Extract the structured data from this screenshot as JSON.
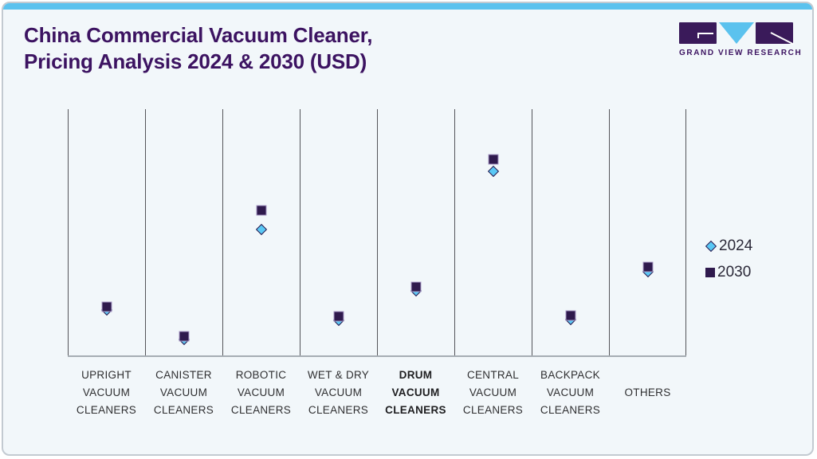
{
  "header": {
    "title_line1": "China Commercial Vacuum Cleaner,",
    "title_line2": "Pricing Analysis 2024 & 2030 (USD)"
  },
  "logo": {
    "text": "GRAND VIEW RESEARCH"
  },
  "colors": {
    "accent_bar": "#5bc2ee",
    "card_bg": "#f2f7fa",
    "card_border": "#c3cad1",
    "title_text": "#3c1361",
    "logo_purple": "#3a1a5a",
    "logo_blue": "#5bc2ee",
    "gridline": "#54555a",
    "axis_line": "#a6adb3",
    "label_text": "#2f2f31",
    "legend_text": "#2b2938",
    "series_2024_fill": "#5ac8f5",
    "series_2024_border": "#2f1a4d",
    "series_2030_fill": "#2f1a4d",
    "series_2030_border": "#a899c7"
  },
  "chart_data": {
    "type": "scatter",
    "title": "China Commercial Vacuum Cleaner, Pricing Analysis 2024 & 2030 (USD)",
    "currency": "USD",
    "grid": "vertical category separators only, no horizontal gridlines",
    "legend_position": "right-center",
    "y_axis": {
      "tick_labels_visible": false,
      "scale_note": "No numeric y-axis is shown in the figure; series values below are marker heights as a fraction of the plot height (0 = x-axis baseline, 1 = plot top)."
    },
    "categories": [
      {
        "lines": [
          "UPRIGHT",
          "VACUUM",
          "CLEANERS"
        ],
        "bold": false
      },
      {
        "lines": [
          "CANISTER",
          "VACUUM",
          "CLEANERS"
        ],
        "bold": false
      },
      {
        "lines": [
          "ROBOTIC",
          "VACUUM",
          "CLEANERS"
        ],
        "bold": false
      },
      {
        "lines": [
          "WET & DRY",
          "VACUUM",
          "CLEANERS"
        ],
        "bold": false
      },
      {
        "lines": [
          "DRUM",
          "VACUUM",
          "CLEANERS"
        ],
        "bold": true
      },
      {
        "lines": [
          "CENTRAL",
          "VACUUM",
          "CLEANERS"
        ],
        "bold": false
      },
      {
        "lines": [
          "BACKPACK",
          "VACUUM",
          "CLEANERS"
        ],
        "bold": false
      },
      {
        "lines": [
          "OTHERS"
        ],
        "bold": false
      }
    ],
    "series": [
      {
        "name": "2024",
        "marker": "diamond",
        "relative_values": [
          0.183,
          0.066,
          0.511,
          0.143,
          0.262,
          0.748,
          0.146,
          0.34
        ]
      },
      {
        "name": "2030",
        "marker": "square",
        "relative_values": [
          0.197,
          0.078,
          0.589,
          0.159,
          0.278,
          0.796,
          0.162,
          0.359
        ]
      }
    ]
  }
}
